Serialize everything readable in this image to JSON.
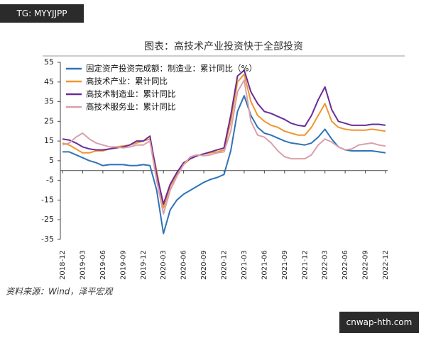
{
  "watermarks": {
    "top": "TG: MYYJJPP",
    "bottom": "cnwap-hth.com"
  },
  "chart_data": {
    "type": "line",
    "title": "图表：高技术产业投资快于全部投资",
    "source": "资料来源：Wind，泽平宏观",
    "categories": [
      "2018-12",
      null,
      null,
      "2019-03",
      null,
      null,
      "2019-06",
      null,
      null,
      "2019-09",
      null,
      null,
      "2019-12",
      null,
      null,
      "2020-03",
      null,
      null,
      "2020-06",
      null,
      null,
      "2020-09",
      null,
      null,
      "2020-12",
      null,
      null,
      "2021-03",
      null,
      null,
      "2021-06",
      null,
      null,
      "2021-09",
      null,
      null,
      "2021-12",
      null,
      null,
      "2022-03",
      null,
      null,
      "2022-06",
      null,
      null,
      "2022-09",
      null,
      null,
      "2022-12"
    ],
    "ylim": [
      -35,
      55
    ],
    "yticks": [
      55,
      45,
      35,
      25,
      15,
      5,
      -5,
      -15,
      -25,
      -35
    ],
    "legend": "top-left",
    "series": [
      {
        "name": "固定资产投资完成额：制造业：累计同比（%）",
        "color": "#2f73b8",
        "values": [
          9.5,
          9.5,
          8,
          6.5,
          5,
          4,
          2.5,
          3,
          3,
          3,
          2.5,
          2.5,
          3,
          2.5,
          -10,
          -32,
          -20,
          -15,
          -12,
          -10,
          -8,
          -6,
          -4.5,
          -3.5,
          -2,
          10,
          30,
          38,
          28,
          22,
          19,
          18,
          16.5,
          15,
          14,
          13.5,
          13,
          14,
          17,
          21,
          16,
          12,
          10.5,
          10,
          10,
          10,
          10,
          9.5,
          9
        ]
      },
      {
        "name": "高技术产业：累计同比",
        "color": "#f0962e",
        "values": [
          14,
          13,
          11,
          9,
          9,
          10,
          10,
          11,
          12,
          12.5,
          13,
          14,
          15,
          16,
          0,
          -19,
          -8,
          -2,
          3,
          6,
          7.5,
          8.5,
          9,
          9.5,
          10.5,
          25,
          45,
          49,
          35,
          28,
          25,
          23,
          22,
          20,
          19,
          18,
          18,
          22,
          28,
          34,
          25,
          22,
          21,
          20.5,
          20.5,
          20.5,
          21,
          20.5,
          20
        ]
      },
      {
        "name": "高技术制造业：累计同比",
        "color": "#6a2c98",
        "values": [
          16,
          15.5,
          14,
          12,
          11,
          10.5,
          10.5,
          11,
          11.5,
          12,
          13,
          15,
          15,
          17.5,
          -2,
          -17,
          -7,
          -1,
          4,
          6,
          7.5,
          8.5,
          9.5,
          10.5,
          11.5,
          28,
          48,
          51,
          40,
          34,
          30,
          29,
          27.5,
          26,
          24,
          23,
          22.5,
          28,
          36,
          42.5,
          31,
          25,
          24,
          23,
          23,
          23,
          23.5,
          23.5,
          23
        ]
      },
      {
        "name": "高技术服务业：累计同比",
        "color": "#d9a0aa",
        "values": [
          13,
          14,
          17,
          19,
          16,
          14,
          13,
          12,
          12,
          11.5,
          12,
          13,
          13,
          15,
          -5,
          -22,
          -10,
          -3,
          3,
          7,
          8,
          7.5,
          8,
          9,
          9.5,
          20,
          40,
          46,
          25,
          18,
          17,
          14,
          10,
          7,
          6,
          6,
          6,
          8,
          13,
          16,
          14.5,
          12,
          10.5,
          11,
          13,
          13.5,
          14,
          13,
          12.5
        ]
      }
    ]
  }
}
